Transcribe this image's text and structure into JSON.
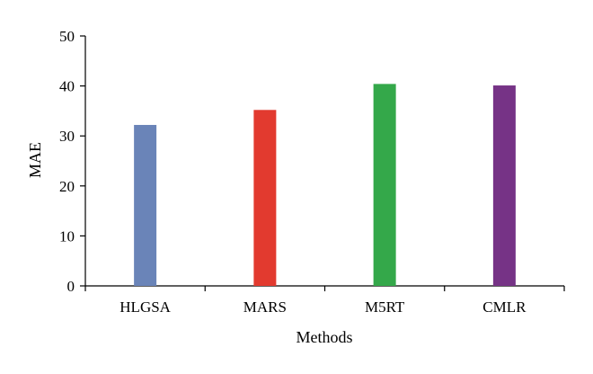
{
  "chart_data": {
    "type": "bar",
    "title": "",
    "xlabel": "Methods",
    "ylabel": "MAE",
    "categories": [
      "HLGSA",
      "MARS",
      "M5RT",
      "CMLR"
    ],
    "values": [
      32.2,
      35.2,
      40.4,
      40.1
    ],
    "colors": [
      "#6a84b8",
      "#e23a2f",
      "#34a84a",
      "#763386"
    ],
    "ylim": [
      0,
      50
    ],
    "yticks": [
      "0",
      "10",
      "20",
      "30",
      "40",
      "50"
    ],
    "grid": false,
    "legend": "none"
  }
}
